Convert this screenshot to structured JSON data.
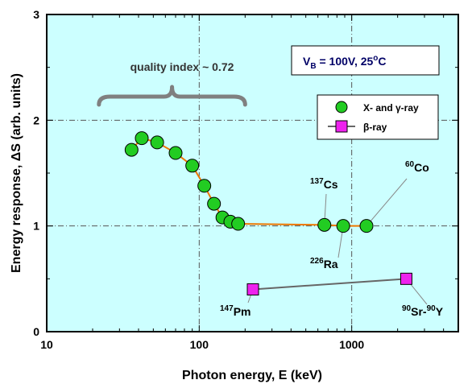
{
  "chart_data": {
    "type": "scatter",
    "xscale": "log",
    "xlim": [
      10,
      5000
    ],
    "ylim": [
      0,
      3
    ],
    "grid": true,
    "xlabel": "Photon energy, E (keV)",
    "ylabel": "Energy response, ΔS (arb. units)",
    "xticks": [
      10,
      100,
      1000
    ],
    "xtick_labels": [
      "10",
      "100",
      "1000"
    ],
    "yticks": [
      0,
      1,
      2,
      3
    ],
    "ytick_labels": [
      "0",
      "1",
      "2",
      "3"
    ],
    "legend_position": "upper right",
    "series": [
      {
        "name": "X- and γ-ray",
        "marker": "circle",
        "color": "#22cc22",
        "line_color": "#ee7700",
        "x": [
          36,
          42,
          53,
          70,
          90,
          108,
          125,
          142,
          160,
          180,
          662,
          880,
          1250
        ],
        "y": [
          1.72,
          1.83,
          1.79,
          1.69,
          1.57,
          1.38,
          1.21,
          1.08,
          1.04,
          1.02,
          1.01,
          1.0,
          1.0
        ]
      },
      {
        "name": "β-ray",
        "marker": "square",
        "color": "#ee22ee",
        "line_color": "#666666",
        "x": [
          225,
          2280
        ],
        "y": [
          0.4,
          0.5
        ]
      }
    ],
    "annotations": {
      "cs": {
        "sup": "137",
        "text": "Cs"
      },
      "ra": {
        "sup": "226",
        "text": "Ra"
      },
      "co": {
        "sup": "60",
        "text": "Co"
      },
      "pm": {
        "sup": "147",
        "text": "Pm"
      },
      "sry": {
        "sup1": "90",
        "text1": "Sr-",
        "sup2": "90",
        "text2": "Y"
      }
    },
    "quality_index": {
      "text": "quality index ~ 0.72",
      "x_range": [
        22,
        200
      ]
    },
    "condition": {
      "v": "V",
      "sub": "B",
      "rest": " = 100V, 25",
      "deg": "o",
      "unit": "C"
    },
    "colors": {
      "plot_bg": "#ccffff",
      "grid": "#555555",
      "bracket": "#808080"
    }
  }
}
